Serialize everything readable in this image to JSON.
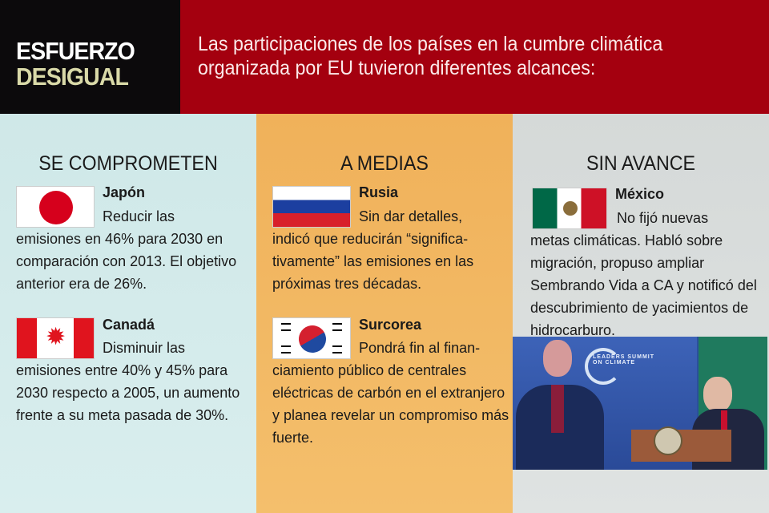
{
  "header": {
    "title_line1": "ESFUERZO",
    "title_line2": "DESIGUAL",
    "subtitle": "Las participaciones de los países en la cumbre climática organizada por EU tuvieron diferentes alcances:"
  },
  "colors": {
    "header_red": "#a4000f",
    "header_black": "#0c0a0c",
    "col1": "#cfe8e8",
    "col2": "#f0b15a",
    "col3": "#d5d9d8"
  },
  "columns": [
    {
      "heading": "SE COMPROMETEN",
      "countries": [
        {
          "name": "Japón",
          "flag": "japan-flag",
          "lead": "Reducir las",
          "text": "emisiones en 46% para 2030 en comparación con 2013. El objetivo anterior era de 26%."
        },
        {
          "name": "Canadá",
          "flag": "canada-flag",
          "lead": "Disminuir las",
          "text": "emisiones entre 40% y 45% para 2030 respecto a 2005, un aumento frente a su meta pasada de 30%."
        }
      ]
    },
    {
      "heading": "A MEDIAS",
      "countries": [
        {
          "name": "Rusia",
          "flag": "russia-flag",
          "lead": "Sin dar detalles,",
          "text": "indicó que reducirán “significa-tivamente” las emisiones en las próximas tres décadas."
        },
        {
          "name": "Surcorea",
          "flag": "south-korea-flag",
          "lead": "Pondrá fin al finan-",
          "text": "ciamiento público de centrales eléctricas de carbón en el extranjero y planea revelar un compromiso más fuerte."
        }
      ]
    },
    {
      "heading": "SIN AVANCE",
      "countries": [
        {
          "name": "México",
          "flag": "mexico-flag",
          "lead": "No fijó nuevas",
          "text": "metas climáticas. Habló sobre migración, propuso ampliar Sembrando Vida a CA y notificó del descubrimiento de yacimientos de hidrocarburo."
        }
      ]
    }
  ],
  "photo": {
    "screen_text": "LEADERS SUMMIT ON CLIMATE"
  }
}
